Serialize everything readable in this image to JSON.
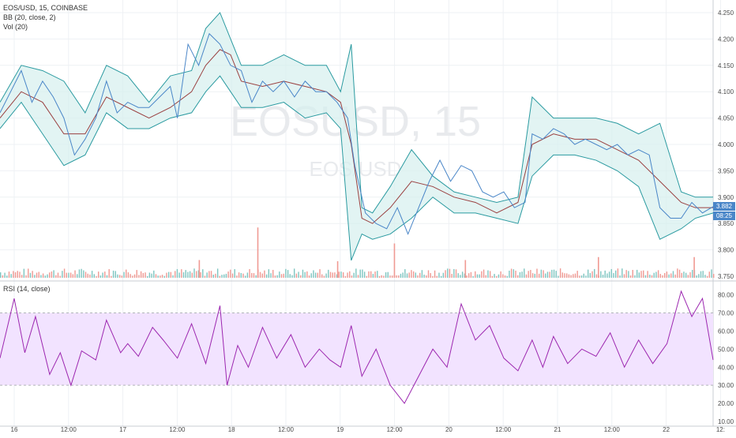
{
  "watermark": {
    "symbol": "EOSUSD, 15",
    "pair": "EOS/USD"
  },
  "legend": {
    "title": "EOS/USD, 15, COINBASE",
    "bb": "BB (20, close, 2)",
    "vol": "Vol (20)",
    "rsi": "RSI (14, close)"
  },
  "price_axis": {
    "ticks": [
      "4.250",
      "4.200",
      "4.150",
      "4.100",
      "4.050",
      "4.000",
      "3.950",
      "3.900",
      "3.850",
      "3.800",
      "3.750"
    ]
  },
  "rsi_axis": {
    "ticks": [
      "80.00",
      "70.00",
      "60.00",
      "50.00",
      "40.00",
      "30.00",
      "20.00",
      "10.00"
    ]
  },
  "last_price_label": "3.882",
  "countdown_label": "08:25",
  "time_axis": {
    "labels": [
      "16",
      "12:00",
      "17",
      "12:00",
      "18",
      "12:00",
      "19",
      "12:00",
      "20",
      "12:00",
      "21",
      "12:00",
      "22",
      "12:"
    ]
  },
  "colors": {
    "price": "#4a86c8",
    "bb_band": "#2a9aa0",
    "bb_fill": "#d6efee",
    "bb_basis": "#9a4040",
    "vol_up": "#7fc6c1",
    "vol_down": "#f09a93",
    "rsi_line": "#9c27b0",
    "rsi_band": "#f2e3ff",
    "tag_blue": "#4a86c8"
  },
  "chart_data": [
    {
      "type": "line",
      "name": "price",
      "ylim": [
        3.75,
        4.25
      ],
      "x": [
        0,
        6,
        12,
        18,
        24,
        30,
        36,
        42,
        48,
        54,
        60,
        66,
        72,
        78,
        84,
        90,
        96,
        100,
        106,
        112,
        118,
        124,
        130,
        136,
        142,
        148,
        154,
        160,
        166,
        172,
        178,
        184,
        190,
        196
      ],
      "y": [
        4.06,
        4.1,
        4.14,
        4.08,
        4.12,
        4.09,
        4.05,
        3.98,
        4.01,
        4.05,
        4.12,
        4.06,
        4.08,
        4.07,
        4.07,
        4.09,
        4.11,
        4.05,
        4.19,
        4.15,
        4.21,
        4.19,
        4.15,
        4.14,
        4.08,
        4.12,
        4.1,
        4.12,
        4.09,
        4.12,
        4.1,
        4.1,
        4.08,
        4.05
      ],
      "x2": [
        200,
        206,
        212,
        218,
        224,
        230,
        236,
        242,
        248,
        254,
        260,
        266,
        272,
        278,
        284,
        290,
        296,
        300,
        306,
        312,
        318,
        324,
        330,
        336,
        342,
        348,
        354,
        360,
        366,
        372,
        378,
        384,
        390,
        396,
        402
      ],
      "y2": [
        3.96,
        3.87,
        3.85,
        3.84,
        3.88,
        3.83,
        3.88,
        3.93,
        3.97,
        3.93,
        3.96,
        3.95,
        3.91,
        3.9,
        3.91,
        3.88,
        3.89,
        4.02,
        4.01,
        4.03,
        4.02,
        4.0,
        4.01,
        4.0,
        3.99,
        4.0,
        3.98,
        3.99,
        3.98,
        3.88,
        3.86,
        3.86,
        3.89,
        3.87,
        3.882
      ]
    },
    {
      "type": "area",
      "name": "BB",
      "x": [
        0,
        12,
        24,
        36,
        48,
        60,
        72,
        84,
        96,
        108,
        116,
        124,
        130,
        136,
        148,
        160,
        172,
        184,
        192,
        198,
        204,
        210,
        220,
        232,
        244,
        256,
        268,
        280,
        292,
        300,
        312,
        324,
        336,
        348,
        360,
        372,
        384,
        392,
        402
      ],
      "upper": [
        4.08,
        4.15,
        4.14,
        4.12,
        4.06,
        4.15,
        4.13,
        4.08,
        4.13,
        4.14,
        4.22,
        4.25,
        4.2,
        4.15,
        4.15,
        4.17,
        4.15,
        4.15,
        4.1,
        4.19,
        3.88,
        3.87,
        3.92,
        3.99,
        3.94,
        3.91,
        3.9,
        3.89,
        3.9,
        4.09,
        4.05,
        4.05,
        4.05,
        4.04,
        4.02,
        4.04,
        3.91,
        3.9,
        3.9
      ],
      "lower": [
        4.03,
        4.08,
        4.02,
        3.96,
        3.98,
        4.06,
        4.03,
        4.03,
        4.05,
        4.06,
        4.1,
        4.13,
        4.1,
        4.07,
        4.07,
        4.08,
        4.05,
        4.06,
        4.03,
        3.78,
        3.83,
        3.82,
        3.83,
        3.86,
        3.9,
        3.87,
        3.87,
        3.86,
        3.85,
        3.94,
        3.98,
        3.98,
        3.97,
        3.95,
        3.92,
        3.82,
        3.84,
        3.86,
        3.87
      ],
      "basis": [
        4.05,
        4.1,
        4.08,
        4.02,
        4.02,
        4.09,
        4.07,
        4.05,
        4.07,
        4.1,
        4.15,
        4.18,
        4.17,
        4.12,
        4.11,
        4.12,
        4.11,
        4.1,
        4.08,
        4.0,
        3.86,
        3.85,
        3.88,
        3.93,
        3.92,
        3.9,
        3.89,
        3.87,
        3.89,
        4.0,
        4.02,
        4.01,
        4.01,
        3.99,
        3.97,
        3.93,
        3.89,
        3.88,
        3.88
      ]
    },
    {
      "type": "bar",
      "name": "Vol",
      "spikes": [
        {
          "x": 145,
          "value": 0.85
        },
        {
          "x": 222,
          "value": 0.58
        },
        {
          "x": 262,
          "value": 0.3
        },
        {
          "x": 337,
          "value": 0.35
        },
        {
          "x": 391,
          "value": 0.35
        },
        {
          "x": 112,
          "value": 0.3
        },
        {
          "x": 190,
          "value": 0.28
        }
      ]
    },
    {
      "type": "line",
      "name": "RSI",
      "ylim": [
        10,
        82
      ],
      "x": [
        0,
        8,
        14,
        20,
        28,
        34,
        40,
        46,
        54,
        60,
        68,
        72,
        78,
        86,
        92,
        100,
        108,
        116,
        124,
        128,
        134,
        140,
        148,
        156,
        164,
        172,
        180,
        186,
        192,
        198,
        204,
        212,
        220,
        228,
        236,
        244,
        252,
        260,
        268,
        276,
        284,
        292,
        300,
        306,
        312,
        320,
        328,
        336,
        344,
        352,
        360,
        368,
        376,
        384,
        390,
        396,
        402
      ],
      "y": [
        45,
        78,
        48,
        68,
        36,
        48,
        30,
        49,
        44,
        66,
        48,
        53,
        46,
        62,
        55,
        45,
        64,
        42,
        74,
        30,
        52,
        40,
        62,
        45,
        58,
        40,
        50,
        44,
        40,
        63,
        35,
        50,
        30,
        20,
        35,
        50,
        40,
        75,
        55,
        63,
        45,
        38,
        55,
        40,
        57,
        42,
        50,
        46,
        59,
        40,
        55,
        42,
        53,
        82,
        68,
        78,
        44
      ]
    }
  ]
}
